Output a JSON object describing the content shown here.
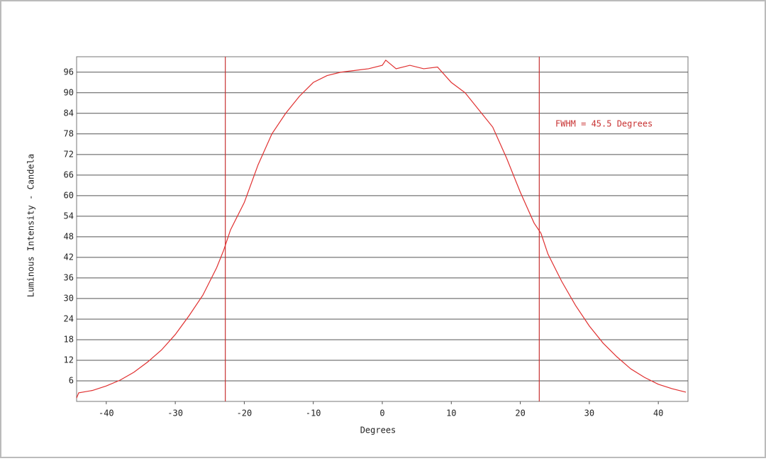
{
  "chart_data": {
    "type": "line",
    "x_label": "Degrees",
    "y_label": "Luminous Intensity - Candela",
    "annotation": "FWHM = 45.5 Degrees",
    "xlim": [
      -44.3,
      44.3
    ],
    "ylim": [
      0,
      100.5
    ],
    "xticks": [
      -40,
      -30,
      -20,
      -10,
      0,
      10,
      20,
      30,
      40
    ],
    "yticks": [
      6,
      12,
      18,
      24,
      30,
      36,
      42,
      48,
      54,
      60,
      66,
      72,
      78,
      84,
      90,
      96
    ],
    "grid": true,
    "vlines": [
      -22.75,
      22.75
    ],
    "vline_color": "#c83232",
    "series": [
      {
        "color": "#e03030",
        "x": [
          -44.3,
          -44,
          -42,
          -40,
          -38,
          -36,
          -34,
          -32,
          -30,
          -28,
          -26,
          -24,
          -23,
          -22,
          -20,
          -18,
          -16,
          -14,
          -12,
          -10,
          -8,
          -6,
          -4,
          -2,
          0,
          0.5,
          2,
          4,
          6,
          8,
          10,
          12,
          14,
          16,
          18,
          20,
          22,
          23,
          24,
          26,
          28,
          30,
          32,
          34,
          36,
          38,
          40,
          42,
          44
        ],
        "values": [
          1,
          2.5,
          3.2,
          4.5,
          6.2,
          8.5,
          11.5,
          15,
          19.5,
          25,
          31,
          39,
          44,
          50,
          58,
          69,
          78,
          84,
          89,
          93,
          95,
          96,
          96.5,
          97,
          98,
          99.5,
          97,
          98,
          97,
          97.5,
          93,
          90,
          85,
          80,
          71,
          61,
          52,
          49,
          43,
          35,
          28,
          22,
          17,
          13,
          9.5,
          7,
          5,
          3.7,
          2.7
        ]
      }
    ]
  }
}
